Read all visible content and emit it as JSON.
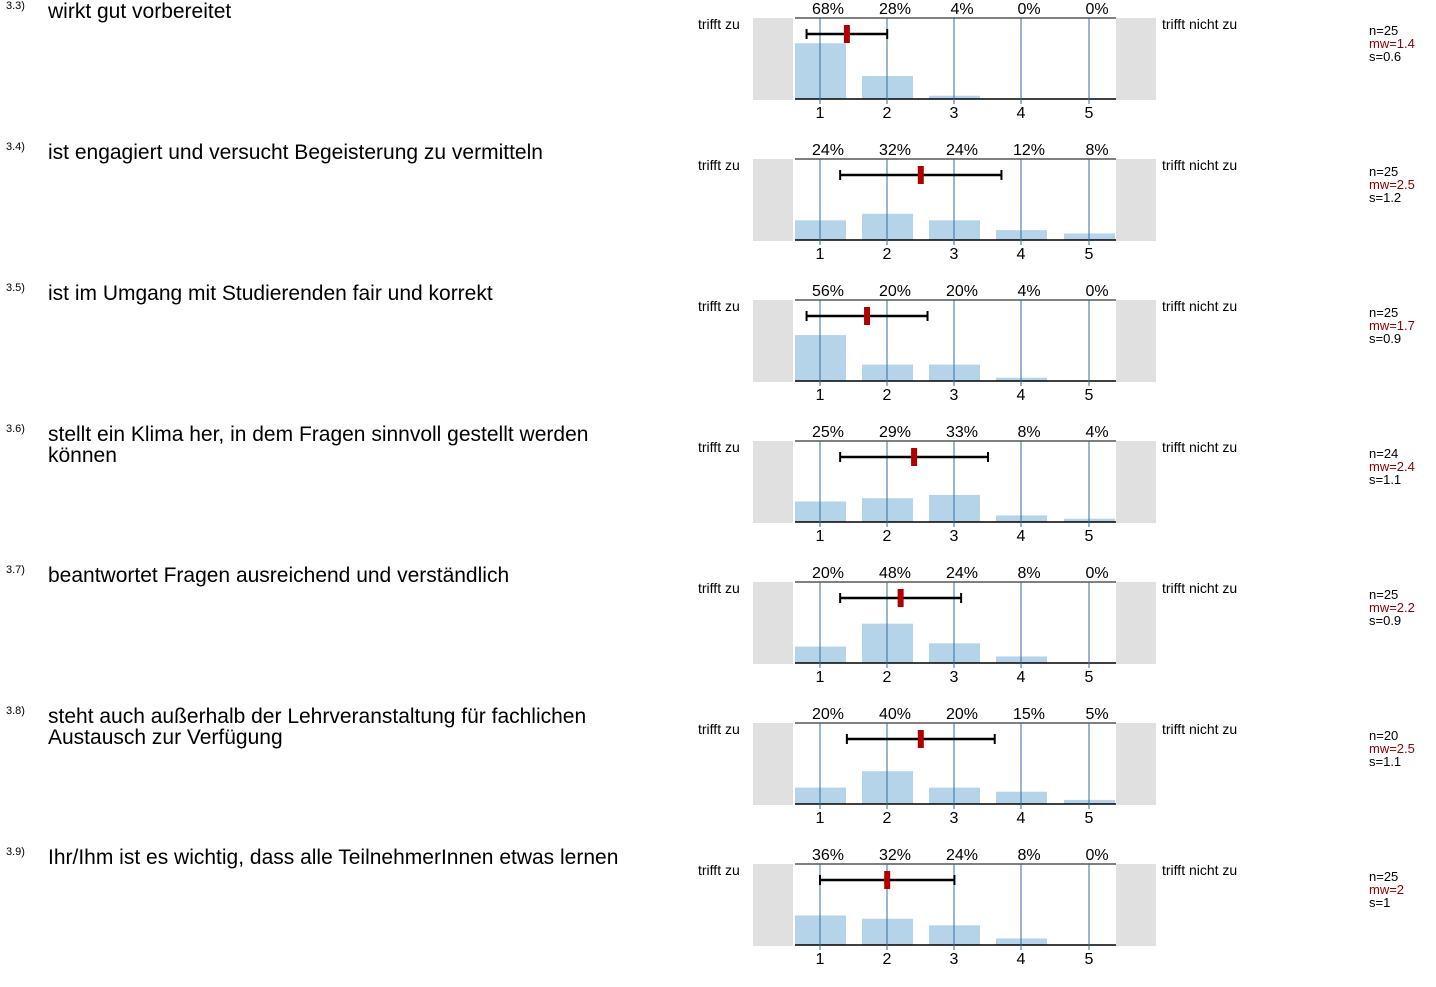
{
  "scale": {
    "left_label": "trifft zu",
    "right_label": "trifft nicht zu",
    "categories": [
      "1",
      "2",
      "3",
      "4",
      "5"
    ]
  },
  "colors": {
    "bar": "#b5d4ea",
    "gridline": "#2e6da4",
    "mean_marker": "#b00000",
    "side_panel": "#e0e0e0",
    "mw_text": "#8b0000"
  },
  "chart_data": [
    {
      "type": "bar",
      "number": "3.3)",
      "question": "wirkt gut vorbereitet",
      "categories": [
        "1",
        "2",
        "3",
        "4",
        "5"
      ],
      "values": [
        68,
        28,
        4,
        0,
        0
      ],
      "value_labels": [
        "68%",
        "28%",
        "4%",
        "0%",
        "0%"
      ],
      "mean": 1.4,
      "sd": 0.6,
      "n_label": "n=25",
      "mw_label": "mw=1.4",
      "s_label": "s=0.6"
    },
    {
      "type": "bar",
      "number": "3.4)",
      "question": "ist engagiert und versucht Begeisterung zu vermitteln",
      "categories": [
        "1",
        "2",
        "3",
        "4",
        "5"
      ],
      "values": [
        24,
        32,
        24,
        12,
        8
      ],
      "value_labels": [
        "24%",
        "32%",
        "24%",
        "12%",
        "8%"
      ],
      "mean": 2.5,
      "sd": 1.2,
      "n_label": "n=25",
      "mw_label": "mw=2.5",
      "s_label": "s=1.2"
    },
    {
      "type": "bar",
      "number": "3.5)",
      "question": "ist im Umgang mit Studierenden fair und korrekt",
      "categories": [
        "1",
        "2",
        "3",
        "4",
        "5"
      ],
      "values": [
        56,
        20,
        20,
        4,
        0
      ],
      "value_labels": [
        "56%",
        "20%",
        "20%",
        "4%",
        "0%"
      ],
      "mean": 1.7,
      "sd": 0.9,
      "n_label": "n=25",
      "mw_label": "mw=1.7",
      "s_label": "s=0.9"
    },
    {
      "type": "bar",
      "number": "3.6)",
      "question": "stellt ein Klima her, in dem Fragen sinnvoll gestellt werden können",
      "categories": [
        "1",
        "2",
        "3",
        "4",
        "5"
      ],
      "values": [
        25,
        29,
        33,
        8,
        4
      ],
      "value_labels": [
        "25%",
        "29%",
        "33%",
        "8%",
        "4%"
      ],
      "mean": 2.4,
      "sd": 1.1,
      "n_label": "n=24",
      "mw_label": "mw=2.4",
      "s_label": "s=1.1"
    },
    {
      "type": "bar",
      "number": "3.7)",
      "question": "beantwortet Fragen ausreichend und verständlich",
      "categories": [
        "1",
        "2",
        "3",
        "4",
        "5"
      ],
      "values": [
        20,
        48,
        24,
        8,
        0
      ],
      "value_labels": [
        "20%",
        "48%",
        "24%",
        "8%",
        "0%"
      ],
      "mean": 2.2,
      "sd": 0.9,
      "n_label": "n=25",
      "mw_label": "mw=2.2",
      "s_label": "s=0.9"
    },
    {
      "type": "bar",
      "number": "3.8)",
      "question": "steht auch außerhalb der Lehrveranstaltung für fachlichen Austausch zur Verfügung",
      "categories": [
        "1",
        "2",
        "3",
        "4",
        "5"
      ],
      "values": [
        20,
        40,
        20,
        15,
        5
      ],
      "value_labels": [
        "20%",
        "40%",
        "20%",
        "15%",
        "5%"
      ],
      "mean": 2.5,
      "sd": 1.1,
      "n_label": "n=20",
      "mw_label": "mw=2.5",
      "s_label": "s=1.1"
    },
    {
      "type": "bar",
      "number": "3.9)",
      "question": "Ihr/Ihm ist es wichtig, dass alle TeilnehmerInnen etwas lernen",
      "categories": [
        "1",
        "2",
        "3",
        "4",
        "5"
      ],
      "values": [
        36,
        32,
        24,
        8,
        0
      ],
      "value_labels": [
        "36%",
        "32%",
        "24%",
        "8%",
        "0%"
      ],
      "mean": 2,
      "sd": 1,
      "n_label": "n=25",
      "mw_label": "mw=2",
      "s_label": "s=1"
    }
  ]
}
